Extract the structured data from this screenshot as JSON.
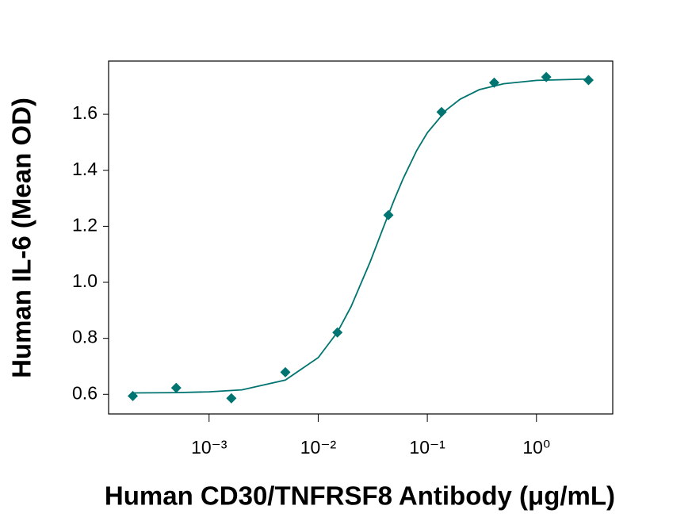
{
  "chart_data": {
    "type": "scatter",
    "x_label": "Human CD30/TNFRSF8 Antibody (μg/mL)",
    "y_label": "Human IL-6 (Mean OD)",
    "x": [
      0.0002,
      0.0005,
      0.0016,
      0.005,
      0.015,
      0.044,
      0.135,
      0.41,
      1.23,
      3.0
    ],
    "values": [
      0.594,
      0.623,
      0.586,
      0.679,
      0.821,
      1.24,
      1.608,
      1.713,
      1.733,
      1.722
    ],
    "color": "#007470",
    "curve": {
      "x": [
        0.0002,
        0.0005,
        0.001,
        0.002,
        0.005,
        0.01,
        0.015,
        0.02,
        0.03,
        0.04,
        0.05,
        0.06,
        0.08,
        0.1,
        0.15,
        0.2,
        0.3,
        0.5,
        1,
        3
      ],
      "values": [
        0.605,
        0.606,
        0.609,
        0.616,
        0.651,
        0.731,
        0.822,
        0.913,
        1.074,
        1.201,
        1.297,
        1.37,
        1.471,
        1.534,
        1.616,
        1.654,
        1.688,
        1.709,
        1.721,
        1.726
      ],
      "color": "#007470"
    },
    "xscale": "log",
    "xlim": [
      0.00012,
      5.0
    ],
    "ylim": [
      0.53,
      1.79
    ],
    "xticks": [
      {
        "value": 0.001,
        "label": "10⁻³"
      },
      {
        "value": 0.01,
        "label": "10⁻²"
      },
      {
        "value": 0.1,
        "label": "10⁻¹"
      },
      {
        "value": 1,
        "label": "10⁰"
      }
    ],
    "yticks": [
      0.6,
      0.8,
      {
        "value": 1,
        "label": "1.0"
      },
      1.2,
      1.4,
      1.6
    ],
    "grid": false
  }
}
